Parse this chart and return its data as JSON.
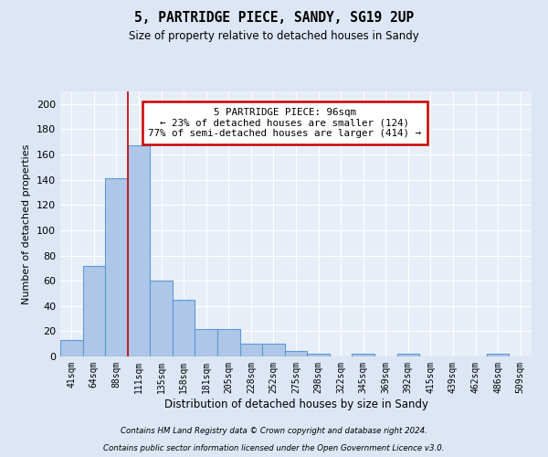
{
  "title1": "5, PARTRIDGE PIECE, SANDY, SG19 2UP",
  "title2": "Size of property relative to detached houses in Sandy",
  "xlabel": "Distribution of detached houses by size in Sandy",
  "ylabel": "Number of detached properties",
  "bar_labels": [
    "41sqm",
    "64sqm",
    "88sqm",
    "111sqm",
    "135sqm",
    "158sqm",
    "181sqm",
    "205sqm",
    "228sqm",
    "252sqm",
    "275sqm",
    "298sqm",
    "322sqm",
    "345sqm",
    "369sqm",
    "392sqm",
    "415sqm",
    "439sqm",
    "462sqm",
    "486sqm",
    "509sqm"
  ],
  "bar_values": [
    13,
    72,
    141,
    167,
    60,
    45,
    22,
    22,
    10,
    10,
    4,
    2,
    0,
    2,
    0,
    2,
    0,
    0,
    0,
    2,
    0
  ],
  "bar_color": "#aec6e8",
  "bar_edge_color": "#5b9bd5",
  "bg_color": "#dce6f5",
  "plot_bg_color": "#e8eef8",
  "grid_color": "#ffffff",
  "red_line_x": 2.5,
  "annotation_text": "5 PARTRIDGE PIECE: 96sqm\n← 23% of detached houses are smaller (124)\n77% of semi-detached houses are larger (414) →",
  "annotation_box_color": "#ffffff",
  "annotation_border_color": "#cc0000",
  "footnote1": "Contains HM Land Registry data © Crown copyright and database right 2024.",
  "footnote2": "Contains public sector information licensed under the Open Government Licence v3.0.",
  "ylim": [
    0,
    210
  ],
  "yticks": [
    0,
    20,
    40,
    60,
    80,
    100,
    120,
    140,
    160,
    180,
    200
  ]
}
